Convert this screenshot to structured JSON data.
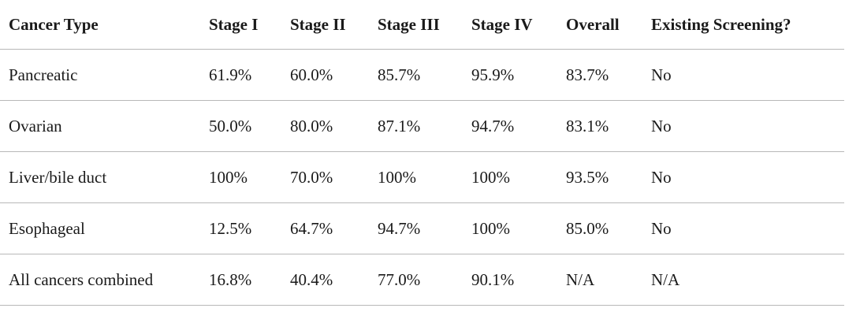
{
  "table": {
    "columns": [
      "Cancer Type",
      "Stage I",
      "Stage II",
      "Stage III",
      "Stage IV",
      "Overall",
      "Existing Screening?"
    ],
    "rows": [
      [
        "Pancreatic",
        "61.9%",
        "60.0%",
        "85.7%",
        "95.9%",
        "83.7%",
        "No"
      ],
      [
        "Ovarian",
        "50.0%",
        "80.0%",
        "87.1%",
        "94.7%",
        "83.1%",
        "No"
      ],
      [
        "Liver/bile duct",
        "100%",
        "70.0%",
        "100%",
        "100%",
        "93.5%",
        "No"
      ],
      [
        "Esophageal",
        "12.5%",
        "64.7%",
        "94.7%",
        "100%",
        "85.0%",
        "No"
      ],
      [
        "All cancers combined",
        "16.8%",
        "40.4%",
        "77.0%",
        "90.1%",
        "N/A",
        "N/A"
      ]
    ]
  }
}
